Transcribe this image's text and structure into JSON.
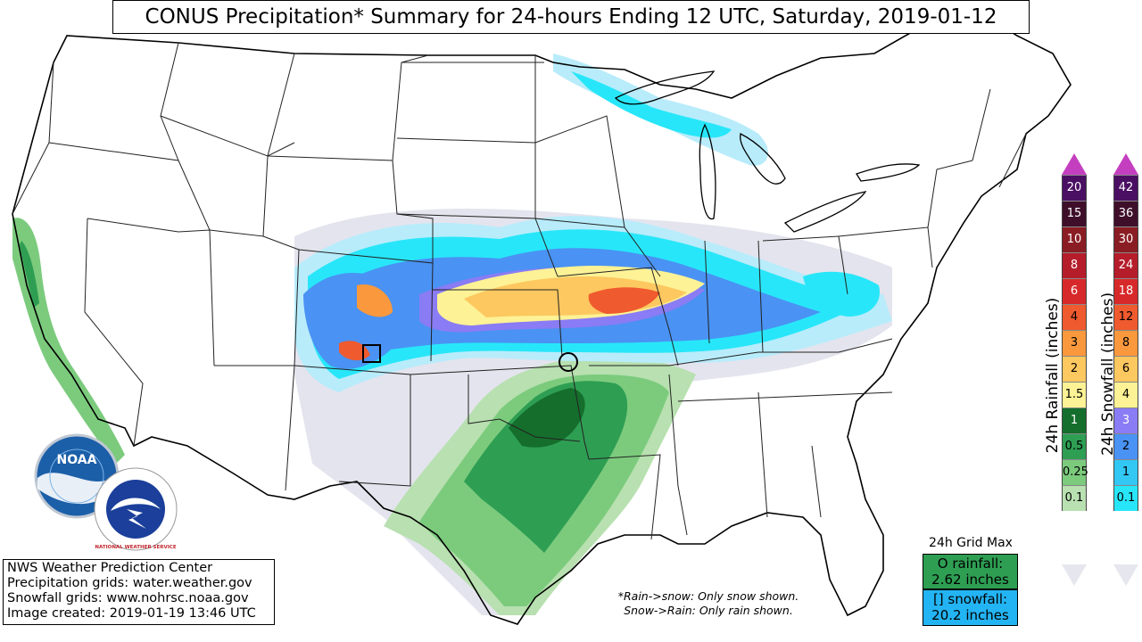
{
  "title": "CONUS Precipitation* Summary for 24-hours Ending 12 UTC, Saturday, 2019-01-12",
  "credits": [
    "NWS Weather Prediction Center",
    "Precipitation grids: water.weather.gov",
    "Snowfall grids: www.nohrsc.noaa.gov",
    "Image created: 2019-01-19 13:46 UTC"
  ],
  "note": {
    "line1": "*Rain->snow: Only snow shown.",
    "line2": "Snow->Rain: Only rain shown."
  },
  "grid_max": {
    "title": "24h Grid Max",
    "rain_line1": "O rainfall:",
    "rain_line2": "2.62 inches",
    "snow_line1": "[] snowfall:",
    "snow_line2": "20.2 inches"
  },
  "rain_legend": {
    "label": "24h Rainfall (inches)",
    "levels": [
      "20",
      "15",
      "10",
      "8",
      "6",
      "4",
      "3",
      "2",
      "1.5",
      "1",
      "0.5",
      "0.25",
      "0.1"
    ],
    "colors": [
      "#4a0f63",
      "#3f0f2a",
      "#8a1d24",
      "#b51d2b",
      "#d7292a",
      "#ef5a2e",
      "#f9983d",
      "#fdc860",
      "#fdf295",
      "#156e2c",
      "#2e9e53",
      "#7ccb7d",
      "#b8e0b0"
    ],
    "top_color": "#c43fc0",
    "bottom_color": "#e6e6ee"
  },
  "snow_legend": {
    "label": "24h Snowfall (inches)",
    "levels": [
      "42",
      "36",
      "30",
      "24",
      "18",
      "12",
      "8",
      "6",
      "4",
      "3",
      "2",
      "1",
      "0.1"
    ],
    "colors": [
      "#4a0f63",
      "#3f0f2a",
      "#8a1d24",
      "#b51d2b",
      "#d7292a",
      "#ef5a2e",
      "#f9983d",
      "#fdc860",
      "#fdf295",
      "#8a7cf4",
      "#4a92f3",
      "#33c7f4",
      "#28e6f9"
    ],
    "top_color": "#c43fc0",
    "bottom_color": "#e6e6ee"
  },
  "logos": {
    "noaa": "NOAA",
    "nws": "NATIONAL WEATHER SERVICE"
  },
  "colors": {
    "snow_light": "#b8ecfb",
    "snow_cyan": "#28e6f9",
    "snow_blue": "#4a92f3",
    "snow_purple": "#8a7cf4",
    "snow_yellow": "#fdf295",
    "snow_orange": "#f9983d",
    "rain_light": "#b8e0b0",
    "rain_mid": "#7ccb7d",
    "rain_green": "#2e9e53",
    "rain_dark": "#156e2c",
    "trace": "#e4e4ee"
  }
}
